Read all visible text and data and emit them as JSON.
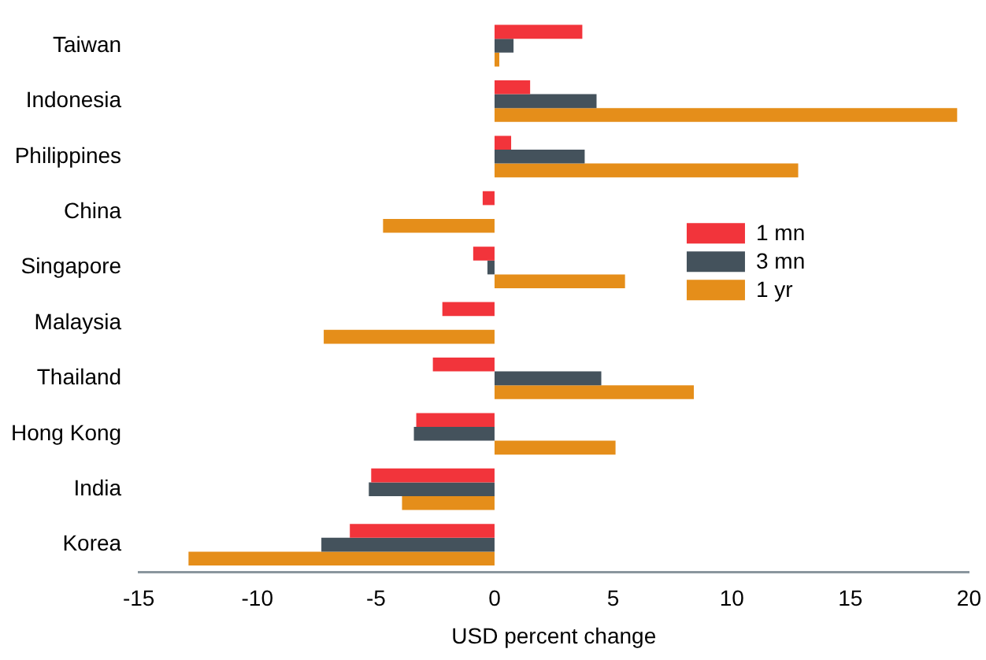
{
  "chart_data": {
    "type": "bar",
    "orientation": "horizontal",
    "xlabel": "USD percent change",
    "categories": [
      "Taiwan",
      "Indonesia",
      "Philippines",
      "China",
      "Singapore",
      "Malaysia",
      "Thailand",
      "Hong Kong",
      "India",
      "Korea"
    ],
    "series": [
      {
        "name": "1 mn",
        "color": "#f2343b",
        "values": [
          3.7,
          1.5,
          0.7,
          -0.5,
          -0.9,
          -2.2,
          -2.6,
          -3.3,
          -5.2,
          -6.1
        ]
      },
      {
        "name": "3 mn",
        "color": "#44525c",
        "values": [
          0.8,
          4.3,
          3.8,
          null,
          -0.3,
          null,
          4.5,
          -3.4,
          -5.3,
          -7.3
        ]
      },
      {
        "name": "1 yr",
        "color": "#e58e1a",
        "values": [
          0.2,
          19.5,
          12.8,
          -4.7,
          5.5,
          -7.2,
          8.4,
          5.1,
          -3.9,
          -12.9
        ]
      }
    ],
    "xlim": [
      -15,
      20
    ],
    "xticks": [
      -15,
      -10,
      -5,
      0,
      5,
      10,
      15,
      20
    ],
    "grid": false,
    "legend": "right"
  }
}
